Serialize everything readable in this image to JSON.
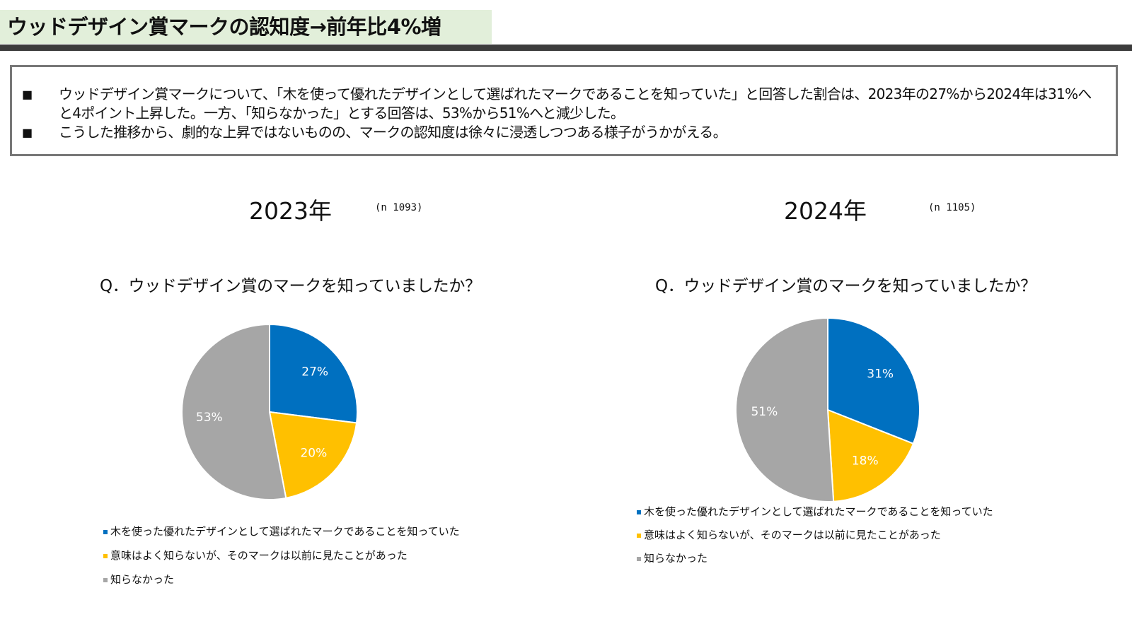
{
  "header": {
    "title": "ウッドデザイン賞マークの認知度→前年比4%増"
  },
  "summary": {
    "bullets": [
      "ウッドデザイン賞マークについて、「木を使って優れたデザインとして選ばれたマークであることを知っていた」と回答した割合は、2023年の27%から2024年は31%へと4ポイント上昇した。一方、「知らなかった」とする回答は、53%から51%へと減少した。",
      "こうした推移から、劇的な上昇ではないものの、マークの認知度は徐々に浸透しつつある様子がうかがえる。"
    ],
    "bullet_mark": "■"
  },
  "colors": {
    "knew": "#0070c0",
    "seen": "#ffc000",
    "unknown": "#a6a6a6"
  },
  "chart_data": [
    {
      "type": "pie",
      "title": "2023年",
      "sample": "(n 1093)",
      "question": "Q．ウッドデザイン賞のマークを知っていましたか？",
      "categories": [
        "木を使った優れたデザインとして選ばれたマークであることを知っていた",
        "意味はよく知らないが、そのマークは以前に見たことがあった",
        "知らなかった"
      ],
      "values": [
        27,
        20,
        53
      ],
      "labels": [
        "27%",
        "20%",
        "53%"
      ],
      "legend_position": "bottom-left"
    },
    {
      "type": "pie",
      "title": "2024年",
      "sample": "(n 1105)",
      "question": "Q．ウッドデザイン賞のマークを知っていましたか？",
      "categories": [
        "木を使った優れたデザインとして選ばれたマークであることを知っていた",
        "意味はよく知らないが、そのマークは以前に見たことがあった",
        "知らなかった"
      ],
      "values": [
        31,
        18,
        51
      ],
      "labels": [
        "31%",
        "18%",
        "51%"
      ],
      "legend_position": "bottom-left"
    }
  ]
}
